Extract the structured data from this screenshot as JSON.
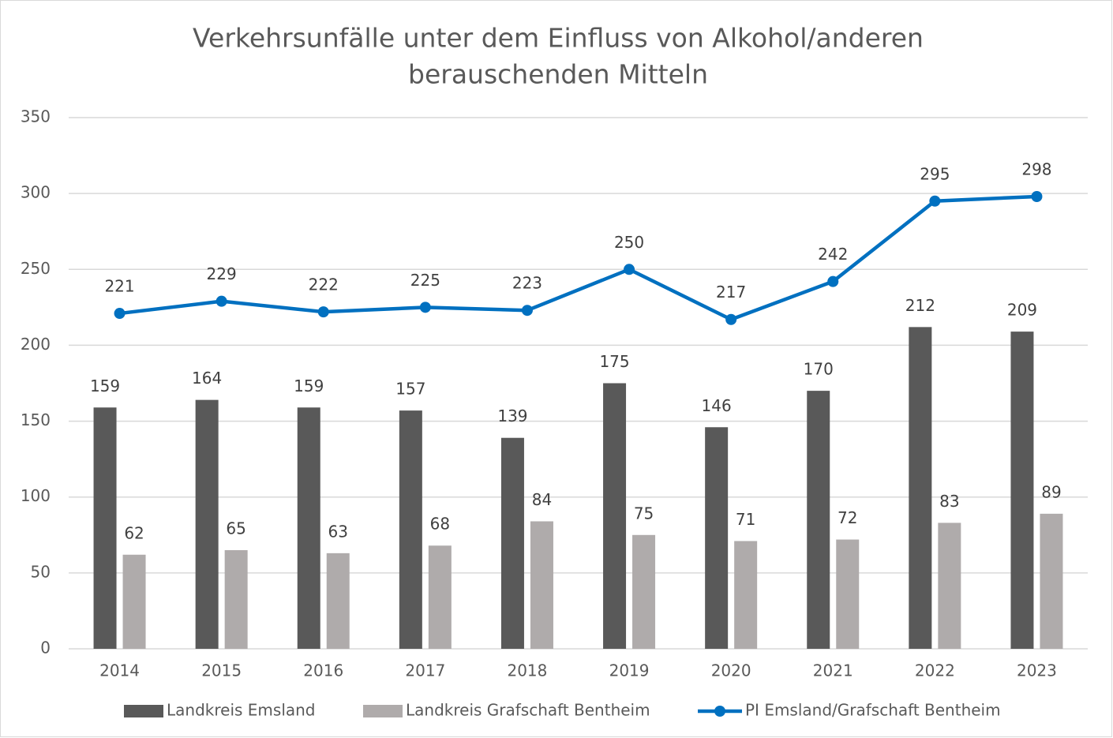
{
  "chart_data": {
    "type": "bar_line",
    "title": [
      "Verkehrsunfälle unter dem Einfluss von Alkohol/anderen",
      "berauschenden Mitteln"
    ],
    "categories": [
      "2014",
      "2015",
      "2016",
      "2017",
      "2018",
      "2019",
      "2020",
      "2021",
      "2022",
      "2023"
    ],
    "series": [
      {
        "name": "Landkreis Emsland",
        "type": "bar",
        "color": "#595959",
        "values": [
          159,
          164,
          159,
          157,
          139,
          175,
          146,
          170,
          212,
          209
        ]
      },
      {
        "name": "Landkreis Grafschaft Bentheim",
        "type": "bar",
        "color": "#afabab",
        "values": [
          62,
          65,
          63,
          68,
          84,
          75,
          71,
          72,
          83,
          89
        ]
      },
      {
        "name": "PI Emsland/Grafschaft Bentheim",
        "type": "line",
        "color": "#0070c0",
        "values": [
          221,
          229,
          222,
          225,
          223,
          250,
          217,
          242,
          295,
          298
        ]
      }
    ],
    "ylim": [
      0,
      350
    ],
    "yticks": [
      0,
      50,
      100,
      150,
      200,
      250,
      300,
      350
    ],
    "grid": true,
    "legend": "bottom"
  }
}
